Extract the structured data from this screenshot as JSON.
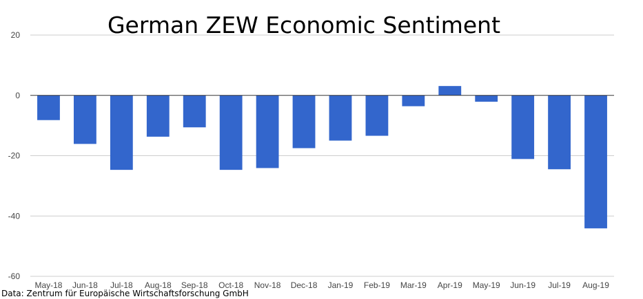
{
  "chart_data": {
    "type": "bar",
    "title": "German ZEW Economic Sentiment",
    "source": "Data: Zentrum für Europäische Wirtschaftsforschung GmbH",
    "categories": [
      "May-18",
      "Jun-18",
      "Jul-18",
      "Aug-18",
      "Sep-18",
      "Oct-18",
      "Nov-18",
      "Dec-18",
      "Jan-19",
      "Feb-19",
      "Mar-19",
      "Apr-19",
      "May-19",
      "Jun-19",
      "Jul-19",
      "Aug-19"
    ],
    "values": [
      -8.2,
      -16.1,
      -24.7,
      -13.7,
      -10.6,
      -24.7,
      -24.1,
      -17.5,
      -15.0,
      -13.4,
      -3.6,
      3.1,
      -2.1,
      -21.1,
      -24.5,
      -44.1
    ],
    "yticks": [
      20,
      0,
      -20,
      -40,
      -60
    ],
    "ylim": [
      -60,
      20
    ],
    "xlabel": "",
    "ylabel": "",
    "grid": true,
    "bar_color": "#3366cc"
  }
}
